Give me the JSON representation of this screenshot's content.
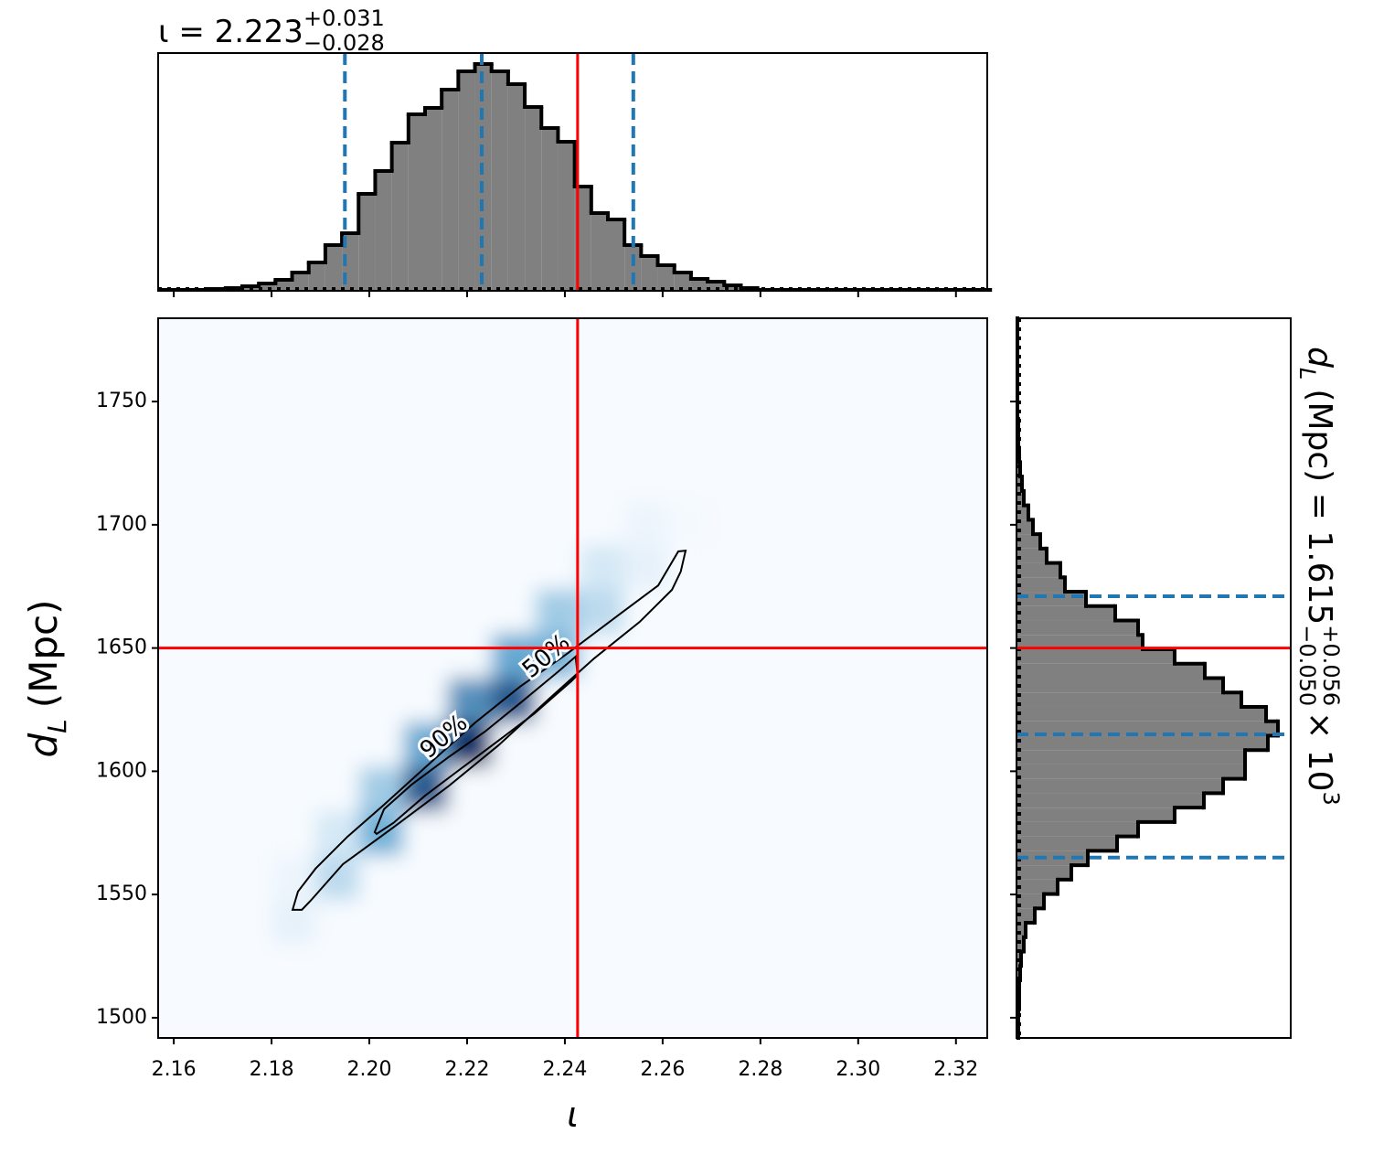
{
  "chart_data": [
    {
      "type": "histogram",
      "orientation": "vertical",
      "title": {
        "text": "ι = 2.223",
        "plus": "+0.031",
        "minus": "−0.028"
      },
      "bins": [
        2.157,
        2.1604,
        2.1638,
        2.1672,
        2.1706,
        2.174,
        2.1774,
        2.1808,
        2.1842,
        2.1876,
        2.191,
        2.1944,
        2.1978,
        2.2012,
        2.2046,
        2.208,
        2.2114,
        2.2148,
        2.2182,
        2.2216,
        2.225,
        2.2284,
        2.2318,
        2.2352,
        2.2386,
        2.242,
        2.2454,
        2.2488,
        2.2522,
        2.2556,
        2.259,
        2.2624,
        2.2658,
        2.2692,
        2.2726,
        2.276,
        2.2794,
        2.2828,
        2.2862,
        2.2896,
        2.293,
        2.2964,
        2.2998,
        2.3032,
        2.3066,
        2.31,
        2.3134,
        2.3168,
        2.3202,
        2.3236,
        2.327
      ],
      "counts": [
        1,
        1,
        1,
        2,
        3,
        5,
        8,
        12,
        20,
        31,
        50,
        63,
        106,
        131,
        162,
        193,
        200,
        220,
        240,
        248,
        240,
        226,
        201,
        178,
        163,
        114,
        85,
        78,
        50,
        38,
        28,
        20,
        13,
        10,
        6,
        3,
        1,
        1,
        1,
        1,
        1,
        1,
        1,
        1,
        1,
        1,
        1,
        1,
        1,
        1
      ],
      "color": "#808080",
      "edge_color": "#000000",
      "xlim": [
        2.1568,
        2.3264
      ],
      "ylim": [
        0,
        260
      ],
      "xticks": [
        2.16,
        2.18,
        {
          "value": 2.2,
          "label": "2.20"
        },
        2.22,
        2.24,
        2.26,
        2.28,
        {
          "value": 2.3,
          "label": "2.30"
        },
        2.32
      ],
      "quantiles": [
        2.195,
        2.223,
        2.254
      ],
      "quantile_color": "#1f77b4",
      "truth": 2.2426,
      "truth_color": "#ff0000"
    },
    {
      "type": "density2d",
      "xlabel": "ι",
      "ylabel": {
        "symbol": "d",
        "subscript": "L",
        "unit": "(Mpc)"
      },
      "xlim": [
        2.1568,
        2.3264
      ],
      "ylim": [
        1491.8,
        1783.8
      ],
      "xticks": [
        2.16,
        2.18,
        {
          "value": 2.2,
          "label": "2.20"
        },
        2.22,
        2.24,
        2.26,
        2.28,
        {
          "value": 2.3,
          "label": "2.30"
        },
        2.32
      ],
      "yticks": [
        1500,
        1550,
        1600,
        1650,
        1700,
        1750
      ],
      "x_edges": [
        2.18,
        2.189,
        2.198,
        2.207,
        2.216,
        2.225,
        2.234,
        2.243,
        2.252,
        2.261,
        2.27
      ],
      "y_edges": [
        1530,
        1548,
        1566,
        1584,
        1602,
        1620,
        1638,
        1656,
        1674,
        1692,
        1710
      ],
      "z": [
        [
          0.05,
          0,
          0,
          0,
          0,
          0,
          0,
          0,
          0,
          0
        ],
        [
          0.03,
          0.17,
          0,
          0,
          0,
          0,
          0,
          0,
          0,
          0
        ],
        [
          0,
          0.1,
          0.39,
          0,
          0,
          0,
          0,
          0,
          0,
          0
        ],
        [
          0,
          0,
          0.25,
          0.67,
          0,
          0,
          0,
          0,
          0,
          0
        ],
        [
          0,
          0,
          0,
          0.42,
          0.8,
          0,
          0,
          0,
          0,
          0
        ],
        [
          0,
          0,
          0,
          0,
          0.5,
          0.67,
          0,
          0,
          0,
          0
        ],
        [
          0,
          0,
          0,
          0,
          0,
          0.42,
          0.39,
          0,
          0,
          0
        ],
        [
          0,
          0,
          0,
          0,
          0,
          0,
          0.25,
          0.17,
          0,
          0
        ],
        [
          0,
          0,
          0,
          0,
          0,
          0,
          0,
          0.1,
          0.05,
          0
        ],
        [
          0,
          0,
          0,
          0,
          0,
          0,
          0,
          0,
          0.03,
          0.01
        ]
      ],
      "colormap": [
        "#f7fbff",
        "#6baed6",
        "#08306b"
      ],
      "contours": [
        {
          "label": "90%",
          "x": [
            2.1843,
            2.1854,
            2.189,
            2.1955,
            2.203,
            2.2123,
            2.2217,
            2.231,
            2.2404,
            2.2516,
            2.2591,
            2.2632,
            2.2647,
            2.2637,
            2.2619,
            2.2553,
            2.246,
            2.2366,
            2.2264,
            2.2161,
            2.2049,
            2.1946,
            2.188,
            2.1862
          ],
          "y": [
            1543.8,
            1551.2,
            1560.5,
            1573.4,
            1586.4,
            1603.1,
            1619.8,
            1634.6,
            1647.6,
            1664.3,
            1675.4,
            1689.2,
            1689.5,
            1681,
            1673.6,
            1660.6,
            1645.8,
            1629.1,
            1610.5,
            1593.8,
            1577.2,
            1562.3,
            1547.5,
            1543.8
          ]
        },
        {
          "label": "50%",
          "x": [
            2.2011,
            2.203,
            2.2086,
            2.2161,
            2.2236,
            2.231,
            2.2385,
            2.2422,
            2.2426,
            2.2413,
            2.2338,
            2.2264,
            2.2189,
            2.2114,
            2.2049,
            2.2015
          ],
          "y": [
            1575.3,
            1584.6,
            1594.5,
            1605.6,
            1616,
            1627.9,
            1640.2,
            1646.5,
            1639.1,
            1636.5,
            1623.5,
            1612.4,
            1601.3,
            1590.1,
            1579,
            1574.6
          ]
        }
      ],
      "truth": {
        "x": 2.2426,
        "y": 1650
      },
      "truth_color": "#ff0000"
    },
    {
      "type": "histogram",
      "orientation": "horizontal",
      "label": {
        "symbol": "d",
        "subscript": "L",
        "text": "(Mpc) = 1.615",
        "plus": "+0.056",
        "minus": "−0.050",
        "times": "× 10",
        "exponent": "3"
      },
      "bins": [
        1491.8,
        1497.64,
        1503.48,
        1509.32,
        1515.16,
        1521.0,
        1526.84,
        1532.68,
        1538.52,
        1544.36,
        1550.2,
        1556.04,
        1561.88,
        1567.72,
        1573.56,
        1579.4,
        1585.24,
        1591.08,
        1596.92,
        1602.76,
        1608.6,
        1614.44,
        1620.28,
        1626.12,
        1631.96,
        1637.8,
        1643.64,
        1649.48,
        1655.32,
        1661.16,
        1667.0,
        1672.84,
        1678.68,
        1684.52,
        1690.36,
        1696.2,
        1702.04,
        1707.88,
        1713.72,
        1719.56,
        1725.4,
        1731.24,
        1737.08,
        1742.92,
        1748.76,
        1754.6,
        1760.44,
        1766.28,
        1772.12,
        1777.96,
        1783.8
      ],
      "counts": [
        2,
        2,
        3,
        3,
        4,
        5,
        8,
        10,
        20,
        30,
        45,
        60,
        78,
        110,
        133,
        173,
        205,
        226,
        250,
        250,
        275,
        286,
        273,
        246,
        226,
        206,
        173,
        138,
        133,
        108,
        76,
        53,
        48,
        33,
        26,
        18,
        13,
        8,
        6,
        4,
        3,
        2,
        2,
        1,
        1,
        1,
        1,
        1,
        1,
        1
      ],
      "color": "#808080",
      "edge_color": "#000000",
      "ylim": [
        1491.8,
        1783.8
      ],
      "xlim": [
        0,
        300
      ],
      "yticks": [
        1500,
        1550,
        1600,
        1650,
        1700,
        1750
      ],
      "quantiles": [
        1565,
        1615,
        1671
      ],
      "quantile_color": "#1f77b4",
      "truth": 1650,
      "truth_color": "#ff0000"
    }
  ]
}
